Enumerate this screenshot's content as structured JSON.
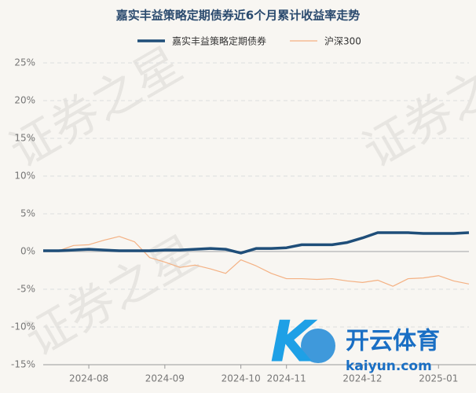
{
  "chart_data": {
    "type": "line",
    "title": "嘉实丰益策略定期债券近6个月累计收益率走势",
    "categories": [
      null,
      null,
      null,
      "2024-08",
      null,
      null,
      null,
      null,
      "2024-09",
      null,
      null,
      null,
      null,
      "2024-10",
      null,
      null,
      "2024-11",
      null,
      null,
      null,
      null,
      "2024-12",
      null,
      null,
      null,
      null,
      "2025-01",
      null,
      null
    ],
    "series": [
      {
        "name": "嘉实丰益策略定期债券",
        "color": "#1f4e79",
        "width": 3.5,
        "values": [
          0.1,
          0.1,
          0.2,
          0.3,
          0.2,
          0.1,
          0.1,
          0.1,
          0.2,
          0.2,
          0.3,
          0.4,
          0.3,
          -0.2,
          0.4,
          0.4,
          0.5,
          0.9,
          0.9,
          0.9,
          1.2,
          1.8,
          2.5,
          2.5,
          2.5,
          2.4,
          2.4,
          2.4,
          2.5
        ]
      },
      {
        "name": "沪深300",
        "color": "#f4b183",
        "width": 1.2,
        "values": [
          0,
          0.1,
          0.8,
          0.9,
          1.5,
          2.0,
          1.3,
          -0.8,
          -1.4,
          -2.1,
          -1.8,
          -2.3,
          -2.9,
          -1.1,
          -1.9,
          -2.9,
          -3.6,
          -3.6,
          -3.7,
          -3.6,
          -3.9,
          -4.1,
          -3.8,
          -4.6,
          -3.6,
          -3.5,
          -3.2,
          -3.9,
          -4.3
        ]
      }
    ],
    "ylim": [
      -15,
      25
    ],
    "yticks": [
      {
        "value": -15,
        "label": "-15%"
      },
      {
        "value": -10,
        "label": "-10%"
      },
      {
        "value": -5,
        "label": "-5%"
      },
      {
        "value": 0,
        "label": "0%"
      },
      {
        "value": 5,
        "label": "5%"
      },
      {
        "value": 10,
        "label": "10%"
      },
      {
        "value": 15,
        "label": "15%"
      },
      {
        "value": 20,
        "label": "20%"
      },
      {
        "value": 25,
        "label": "25%"
      }
    ],
    "grid": true,
    "legend": "top"
  },
  "watermark": "证券之星",
  "logo": {
    "name": "开云体育",
    "url": "kaiyun.com"
  }
}
